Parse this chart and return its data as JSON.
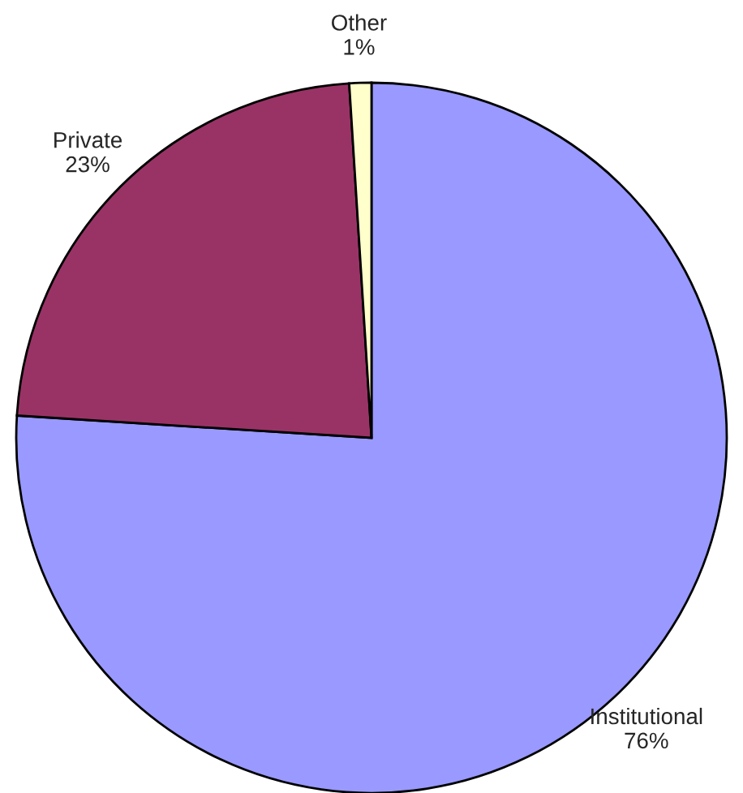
{
  "chart_data": {
    "type": "pie",
    "categories": [
      "Institutional",
      "Private",
      "Other"
    ],
    "values": [
      76,
      23,
      1
    ],
    "value_labels": [
      "76%",
      "23%",
      "1%"
    ],
    "colors": [
      "#9999ff",
      "#993366",
      "#ffffcc"
    ],
    "legend": false
  }
}
